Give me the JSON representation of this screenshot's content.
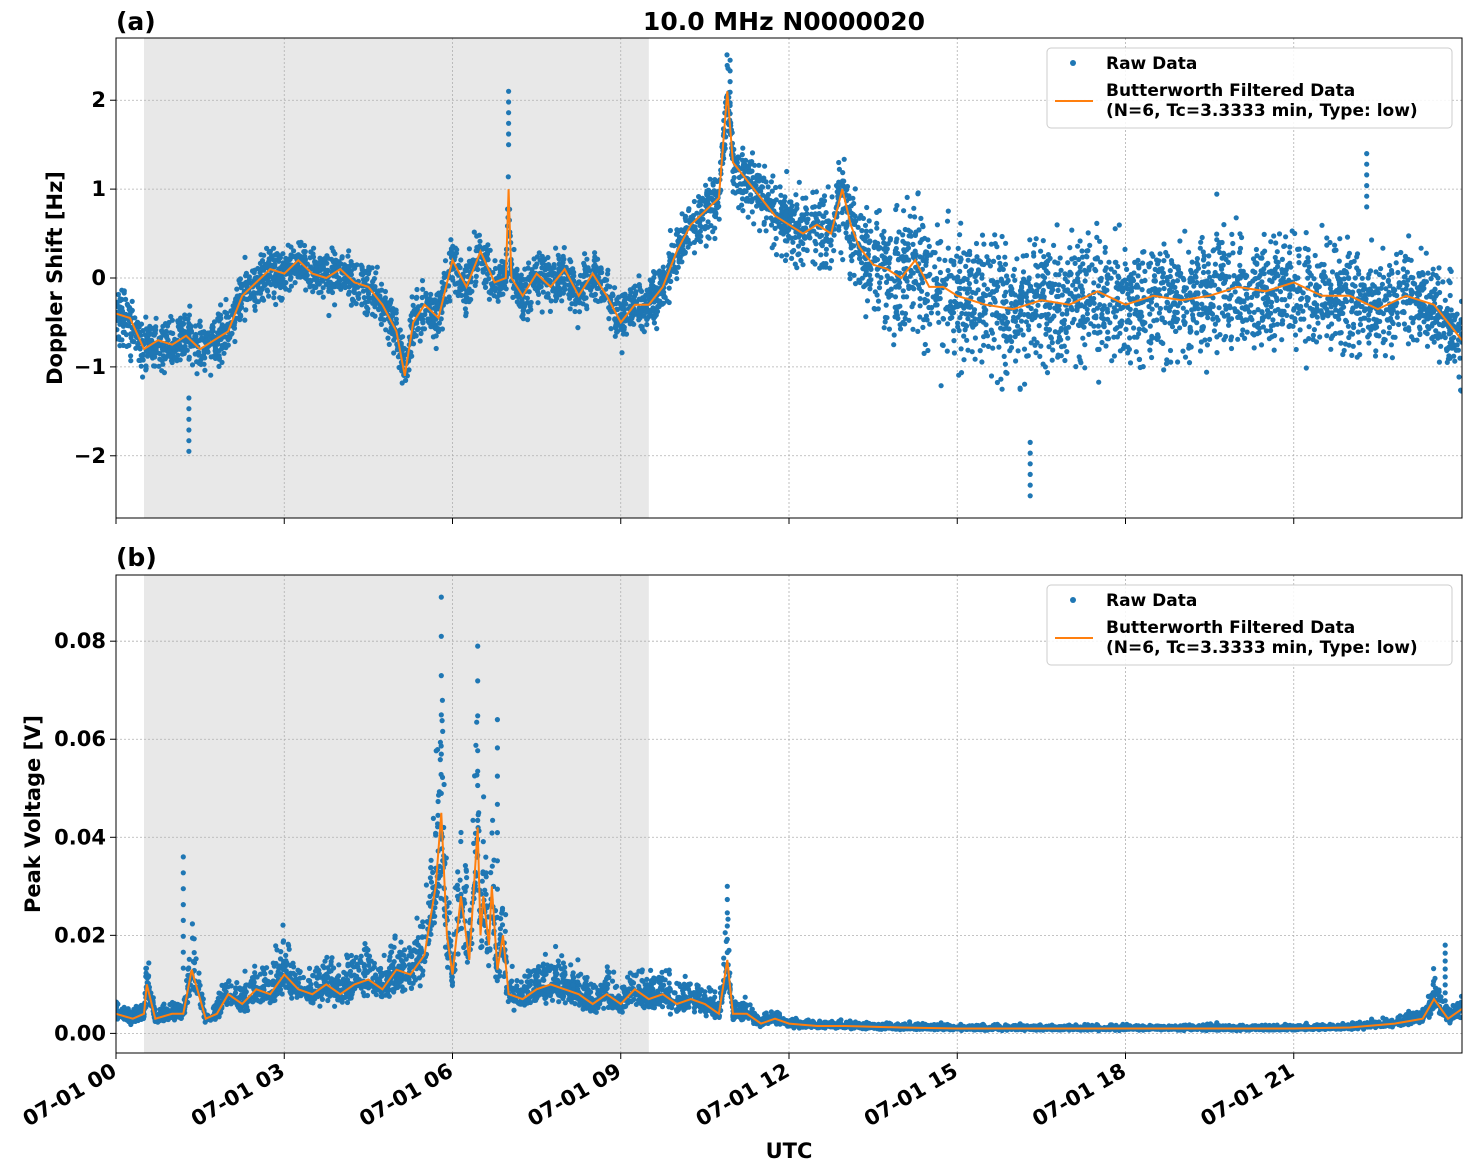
{
  "figure": {
    "title": "10.0 MHz N0000020",
    "xlabel": "UTC"
  },
  "legend": {
    "raw_label": "Raw Data",
    "filtered_label_line1": "Butterworth Filtered Data",
    "filtered_label_line2": "(N=6, Tc=3.3333 min, Type: low)",
    "placement": "upper-right"
  },
  "colors": {
    "raw": "#1f77b4",
    "filtered": "#ff7f0e",
    "night_shade": "#e8e8e8",
    "grid": "#b0b0b0"
  },
  "chart_data": [
    {
      "type": "scatter",
      "panel_label": "(a)",
      "ylabel": "Doppler Shift [Hz]",
      "xlim": [
        "2024-07-01 00:00",
        "2024-07-02 00:00"
      ],
      "ylim": [
        -2.7,
        2.7
      ],
      "yticks": [
        -2,
        -1,
        0,
        1,
        2
      ],
      "ytick_labels": [
        "−2",
        "−1",
        "0",
        "1",
        "2"
      ],
      "xticks": [
        "07-01 00",
        "07-01 03",
        "07-01 06",
        "07-01 09",
        "07-01 12",
        "07-01 15",
        "07-01 18",
        "07-01 21"
      ],
      "xtick_hours": [
        0,
        3,
        6,
        9,
        12,
        15,
        18,
        21
      ],
      "shaded_interval_hours": [
        0.5,
        9.5
      ],
      "grid": true,
      "series": [
        {
          "name": "Butterworth Filtered Data",
          "kind": "line",
          "x_hours": [
            0,
            0.25,
            0.5,
            0.75,
            1,
            1.25,
            1.5,
            1.75,
            2,
            2.25,
            2.5,
            2.75,
            3,
            3.25,
            3.5,
            3.75,
            4,
            4.25,
            4.5,
            4.75,
            5,
            5.15,
            5.3,
            5.5,
            5.75,
            6,
            6.25,
            6.5,
            6.75,
            6.95,
            7.0,
            7.05,
            7.25,
            7.5,
            7.75,
            8,
            8.25,
            8.5,
            8.75,
            9,
            9.25,
            9.5,
            9.75,
            10,
            10.25,
            10.5,
            10.75,
            10.9,
            11,
            11.25,
            11.5,
            11.75,
            12,
            12.25,
            12.5,
            12.75,
            12.95,
            13.1,
            13.25,
            13.5,
            13.75,
            14,
            14.25,
            14.5,
            14.75,
            15,
            15.5,
            16,
            16.5,
            17,
            17.5,
            18,
            18.5,
            19,
            19.5,
            20,
            20.5,
            21,
            21.5,
            22,
            22.5,
            23,
            23.5,
            24
          ],
          "y": [
            -0.4,
            -0.45,
            -0.8,
            -0.7,
            -0.75,
            -0.65,
            -0.8,
            -0.7,
            -0.6,
            -0.2,
            -0.05,
            0.1,
            0.05,
            0.2,
            0.05,
            0.0,
            0.1,
            -0.05,
            -0.1,
            -0.3,
            -0.6,
            -1.1,
            -0.5,
            -0.3,
            -0.45,
            0.2,
            -0.1,
            0.3,
            -0.05,
            0.0,
            1.0,
            0.0,
            -0.2,
            0.05,
            -0.1,
            0.1,
            -0.2,
            0.05,
            -0.2,
            -0.5,
            -0.3,
            -0.3,
            -0.1,
            0.3,
            0.6,
            0.75,
            0.9,
            2.1,
            1.3,
            1.1,
            0.9,
            0.7,
            0.6,
            0.5,
            0.6,
            0.5,
            1.0,
            0.6,
            0.35,
            0.15,
            0.1,
            0.0,
            0.2,
            -0.1,
            -0.1,
            -0.2,
            -0.3,
            -0.35,
            -0.25,
            -0.3,
            -0.15,
            -0.3,
            -0.2,
            -0.25,
            -0.2,
            -0.1,
            -0.15,
            -0.05,
            -0.2,
            -0.2,
            -0.35,
            -0.2,
            -0.3,
            -0.7
          ]
        },
        {
          "name": "Raw Data",
          "kind": "scatter",
          "spread_x_hours": [
            0,
            2,
            5,
            9,
            10,
            11,
            12,
            13,
            14,
            16,
            20,
            24
          ],
          "spread_y": [
            0.35,
            0.3,
            0.3,
            0.3,
            0.3,
            0.35,
            0.4,
            0.55,
            0.75,
            0.75,
            0.7,
            0.55
          ],
          "notable_values": {
            "max": 2.45,
            "min": -2.45
          }
        }
      ]
    },
    {
      "type": "scatter",
      "panel_label": "(b)",
      "ylabel": "Peak Voltage [V]",
      "xlim": [
        "2024-07-01 00:00",
        "2024-07-02 00:00"
      ],
      "ylim": [
        -0.004,
        0.0935
      ],
      "yticks": [
        0.0,
        0.02,
        0.04,
        0.06,
        0.08
      ],
      "ytick_labels": [
        "0.00",
        "0.02",
        "0.04",
        "0.06",
        "0.08"
      ],
      "xticks": [
        "07-01 00",
        "07-01 03",
        "07-01 06",
        "07-01 09",
        "07-01 12",
        "07-01 15",
        "07-01 18",
        "07-01 21"
      ],
      "xtick_hours": [
        0,
        3,
        6,
        9,
        12,
        15,
        18,
        21
      ],
      "shaded_interval_hours": [
        0.5,
        9.5
      ],
      "grid": true,
      "series": [
        {
          "name": "Butterworth Filtered Data",
          "kind": "line",
          "x_hours": [
            0,
            0.3,
            0.5,
            0.55,
            0.7,
            1.0,
            1.2,
            1.35,
            1.6,
            1.8,
            2.0,
            2.25,
            2.5,
            2.75,
            3.0,
            3.25,
            3.5,
            3.75,
            4.0,
            4.25,
            4.5,
            4.75,
            5.0,
            5.25,
            5.5,
            5.7,
            5.8,
            5.9,
            6.0,
            6.15,
            6.3,
            6.45,
            6.5,
            6.55,
            6.65,
            6.7,
            6.8,
            6.9,
            7.0,
            7.25,
            7.5,
            7.75,
            8.0,
            8.25,
            8.5,
            8.75,
            9.0,
            9.25,
            9.5,
            9.75,
            10.0,
            10.25,
            10.5,
            10.75,
            10.9,
            11.0,
            11.25,
            11.5,
            11.75,
            12.0,
            12.5,
            13,
            14,
            15,
            16,
            17,
            18,
            19,
            20,
            21,
            22,
            22.8,
            23.3,
            23.5,
            23.75,
            24
          ],
          "y": [
            0.004,
            0.003,
            0.004,
            0.01,
            0.003,
            0.004,
            0.004,
            0.013,
            0.003,
            0.004,
            0.008,
            0.006,
            0.009,
            0.008,
            0.012,
            0.009,
            0.008,
            0.01,
            0.008,
            0.01,
            0.011,
            0.009,
            0.013,
            0.012,
            0.016,
            0.03,
            0.045,
            0.02,
            0.012,
            0.028,
            0.015,
            0.042,
            0.02,
            0.028,
            0.018,
            0.03,
            0.013,
            0.02,
            0.008,
            0.007,
            0.009,
            0.01,
            0.009,
            0.008,
            0.006,
            0.008,
            0.006,
            0.009,
            0.007,
            0.008,
            0.006,
            0.007,
            0.006,
            0.004,
            0.015,
            0.004,
            0.004,
            0.002,
            0.003,
            0.002,
            0.0015,
            0.0015,
            0.0012,
            0.001,
            0.001,
            0.001,
            0.001,
            0.001,
            0.001,
            0.001,
            0.0012,
            0.002,
            0.003,
            0.007,
            0.003,
            0.005
          ]
        },
        {
          "name": "Raw Data",
          "kind": "scatter",
          "notable_values": {
            "max": 0.089,
            "min": 0.0
          }
        }
      ]
    }
  ]
}
